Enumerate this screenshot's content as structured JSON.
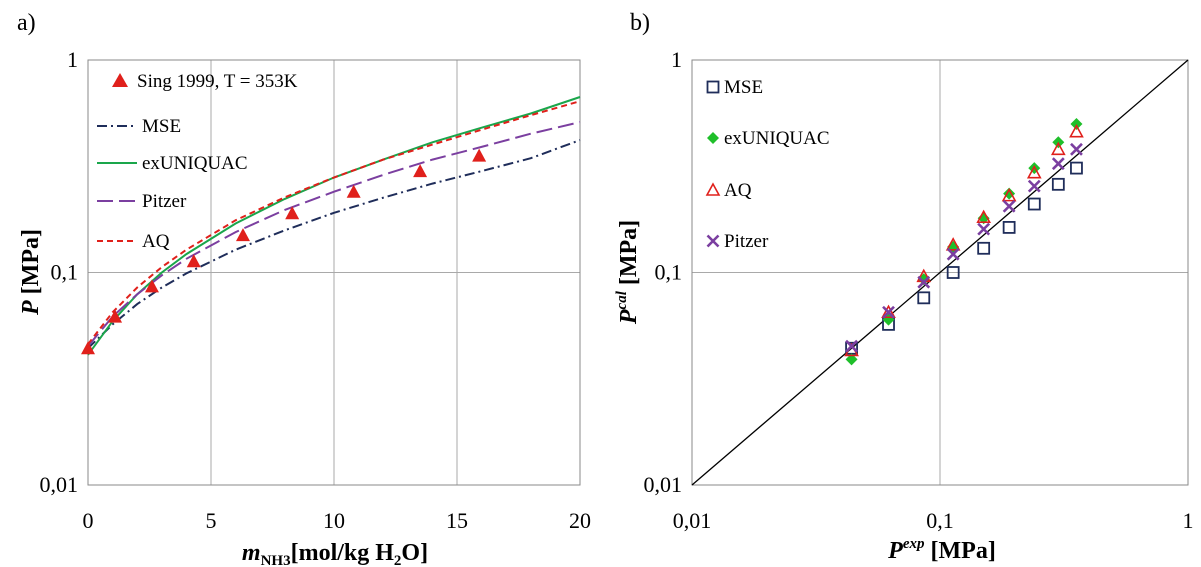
{
  "chart_data": [
    {
      "panel_label": "a)",
      "type": "line",
      "xscale": "linear",
      "yscale": "log",
      "xlim": [
        0,
        20
      ],
      "ylim": [
        0.01,
        1
      ],
      "grid": true,
      "legend_position": "top-left",
      "x_ticks": [
        "0",
        "5",
        "10",
        "15",
        "20"
      ],
      "y_ticks": [
        "0,01",
        "0,1",
        "1"
      ],
      "xlabel": {
        "main": "m",
        "sub": "NH3",
        "rest": "[mol/kg H",
        "sub2": "2",
        "rest2": "O]"
      },
      "ylabel": {
        "main": "P",
        "rest": " [MPa]"
      },
      "series": [
        {
          "name": "Sing 1999, T = 353K",
          "kind": "points",
          "color": "#e0201b",
          "x": [
            0,
            1.1,
            2.6,
            4.3,
            6.3,
            8.3,
            10.8,
            13.5,
            15.9
          ],
          "y": [
            0.044,
            0.062,
            0.086,
            0.113,
            0.15,
            0.19,
            0.24,
            0.3,
            0.355
          ]
        },
        {
          "name": "MSE",
          "kind": "line",
          "color": "#1f2d5a",
          "dash": "dashdot",
          "x": [
            0,
            1,
            2,
            3,
            4,
            6,
            8,
            10,
            12,
            14,
            16,
            18,
            20
          ],
          "y": [
            0.044,
            0.057,
            0.071,
            0.085,
            0.099,
            0.128,
            0.158,
            0.191,
            0.225,
            0.262,
            0.3,
            0.345,
            0.42
          ]
        },
        {
          "name": "exUNIQUAC",
          "kind": "line",
          "color": "#1aa64b",
          "dash": "solid",
          "x": [
            0,
            1,
            2,
            3,
            4,
            6,
            8,
            10,
            12,
            14,
            16,
            18,
            20
          ],
          "y": [
            0.041,
            0.059,
            0.079,
            0.1,
            0.122,
            0.17,
            0.222,
            0.28,
            0.34,
            0.41,
            0.48,
            0.56,
            0.67
          ]
        },
        {
          "name": "Pitzer",
          "kind": "line",
          "color": "#7b3fa0",
          "dash": "longdash",
          "x": [
            0,
            1,
            2,
            3,
            4,
            6,
            8,
            10,
            12,
            14,
            16,
            18,
            20
          ],
          "y": [
            0.045,
            0.062,
            0.079,
            0.097,
            0.116,
            0.155,
            0.197,
            0.24,
            0.288,
            0.34,
            0.39,
            0.45,
            0.51
          ]
        },
        {
          "name": "AQ",
          "kind": "line",
          "color": "#e0201b",
          "dash": "shortdash",
          "x": [
            0,
            1,
            2,
            3,
            4,
            6,
            8,
            10,
            12,
            14,
            16,
            18,
            20
          ],
          "y": [
            0.046,
            0.065,
            0.085,
            0.106,
            0.128,
            0.176,
            0.226,
            0.28,
            0.34,
            0.4,
            0.47,
            0.55,
            0.64
          ]
        }
      ]
    },
    {
      "panel_label": "b)",
      "type": "scatter",
      "xscale": "log",
      "yscale": "log",
      "xlim": [
        0.01,
        1
      ],
      "ylim": [
        0.01,
        1
      ],
      "grid": true,
      "legend_position": "top-left",
      "x_ticks": [
        "0,01",
        "0,1",
        "1"
      ],
      "y_ticks": [
        "0,01",
        "0,1",
        "1"
      ],
      "xlabel": {
        "main": "P",
        "sup": "exp",
        "rest": " [MPa]"
      },
      "ylabel": {
        "main": "P",
        "sup": "cal",
        "rest": " [MPa]"
      },
      "diagonal": true,
      "pexp": [
        0.044,
        0.062,
        0.086,
        0.113,
        0.15,
        0.19,
        0.24,
        0.3,
        0.355
      ],
      "series": [
        {
          "name": "MSE",
          "marker": "square",
          "color": "#1f2d5a",
          "y": [
            0.044,
            0.057,
            0.076,
            0.1,
            0.13,
            0.163,
            0.21,
            0.26,
            0.31
          ]
        },
        {
          "name": "exUNIQUAC",
          "marker": "diamond",
          "color": "#1fbf2a",
          "y": [
            0.039,
            0.06,
            0.093,
            0.132,
            0.18,
            0.235,
            0.31,
            0.41,
            0.5
          ]
        },
        {
          "name": "AQ",
          "marker": "triangle",
          "color": "#e0201b",
          "y": [
            0.043,
            0.065,
            0.096,
            0.135,
            0.182,
            0.23,
            0.295,
            0.38,
            0.46
          ]
        },
        {
          "name": "Pitzer",
          "marker": "cross",
          "color": "#7b3fa0",
          "y": [
            0.045,
            0.065,
            0.09,
            0.122,
            0.16,
            0.205,
            0.255,
            0.325,
            0.38
          ]
        }
      ]
    }
  ]
}
